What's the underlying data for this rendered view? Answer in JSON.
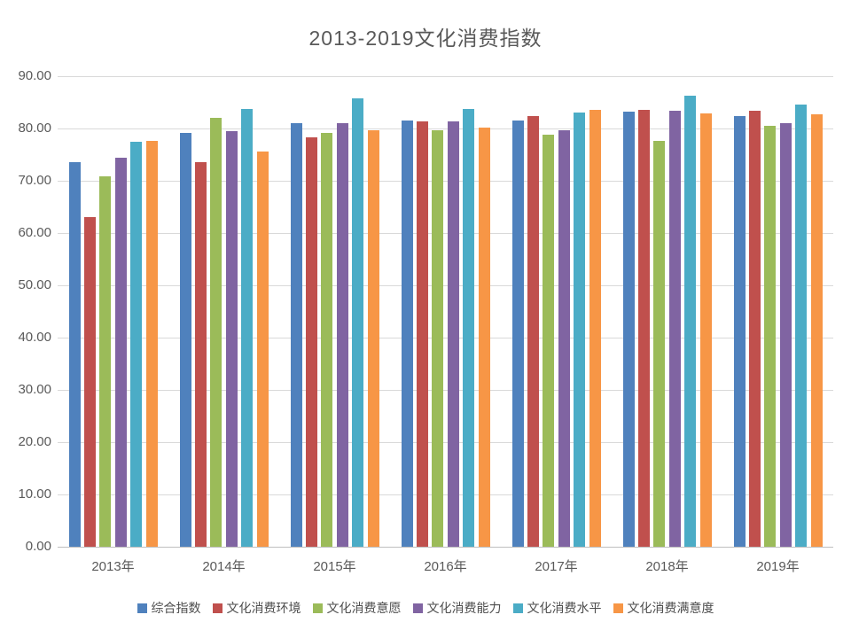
{
  "chart_data": {
    "type": "bar",
    "title": "2013-2019文化消费指数",
    "categories": [
      "2013年",
      "2014年",
      "2015年",
      "2016年",
      "2017年",
      "2018年",
      "2019年"
    ],
    "series": [
      {
        "name": "综合指数",
        "color": "#4F81BD",
        "values": [
          73.6,
          79.1,
          81.1,
          81.6,
          81.6,
          83.2,
          82.4
        ]
      },
      {
        "name": "文化消费环境",
        "color": "#C0504D",
        "values": [
          63.1,
          73.6,
          78.3,
          81.4,
          82.4,
          83.5,
          83.4
        ]
      },
      {
        "name": "文化消费意愿",
        "color": "#9BBB59",
        "values": [
          70.9,
          82.1,
          79.2,
          79.6,
          78.9,
          77.6,
          80.5
        ]
      },
      {
        "name": "文化消费能力",
        "color": "#8064A2",
        "values": [
          74.4,
          79.5,
          81.1,
          81.3,
          79.7,
          83.4,
          81.1
        ]
      },
      {
        "name": "文化消费水平",
        "color": "#4BACC6",
        "values": [
          77.4,
          83.8,
          85.7,
          83.8,
          83.0,
          86.2,
          84.6
        ]
      },
      {
        "name": "文化消费满意度",
        "color": "#F79646",
        "values": [
          77.7,
          75.6,
          79.6,
          80.2,
          83.5,
          82.9,
          82.7
        ]
      }
    ],
    "ylim": [
      0,
      90
    ],
    "ytick_step": 10,
    "ytick_labels": [
      "0.00",
      "10.00",
      "20.00",
      "30.00",
      "40.00",
      "50.00",
      "60.00",
      "70.00",
      "80.00",
      "90.00"
    ],
    "grid": "horizontal",
    "legend_position": "bottom",
    "gridline_color": "#D9D9D9",
    "axis_line_color": "#BFBFBF",
    "text_color": "#595959"
  }
}
